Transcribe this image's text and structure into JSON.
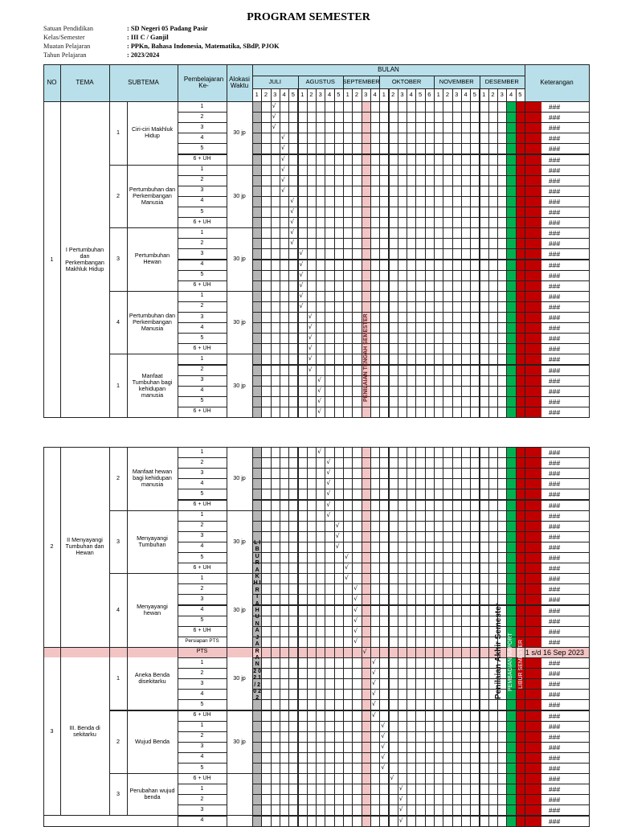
{
  "document": {
    "title": "PROGRAM SEMESTER",
    "meta": [
      {
        "label": "Satuan Pendidikan",
        "value": ": SD Negeri 05 Padang Pasir"
      },
      {
        "label": "Kelas/Semester",
        "value": ": III C / Ganjil"
      },
      {
        "label": "Muatan Pelajaran",
        "value": ": PPKn, Bahasa Indonesia, Matematika, SBdP, PJOK"
      },
      {
        "label": "Tahun Pelajaran",
        "value": ": 2023/2024"
      }
    ]
  },
  "header": {
    "no": "NO",
    "tema": "TEMA",
    "subtema": "SUBTEMA",
    "pembelajaran": "Pembelajaran Ke-",
    "alokasi": "Alokasi Waktu",
    "bulan": "BULAN",
    "keterangan": "Keterangan",
    "months": [
      {
        "name": "JULI",
        "weeks": [
          "1",
          "2",
          "3",
          "4",
          "5"
        ]
      },
      {
        "name": "AGUSTUS",
        "weeks": [
          "1",
          "2",
          "3",
          "4",
          "5"
        ]
      },
      {
        "name": "SEPTEMBER",
        "weeks": [
          "1",
          "2",
          "3",
          "4"
        ]
      },
      {
        "name": "OKTOBER",
        "weeks": [
          "1",
          "2",
          "3",
          "4",
          "5",
          "6"
        ]
      },
      {
        "name": "NOVEMBER",
        "weeks": [
          "1",
          "2",
          "3",
          "4",
          "5"
        ]
      },
      {
        "name": "DESEMBER",
        "weeks": [
          "1",
          "2",
          "3",
          "4",
          "5"
        ]
      }
    ]
  },
  "colors": {
    "header_bg": "#b9e0ea",
    "gray_column": "#b5b5b5",
    "pink_column": "#f2c4c4",
    "green_column": "#00b050",
    "red_column": "#c00000",
    "pts_row": "#f2c4c4"
  },
  "vertical_labels": {
    "pts_column": "PENILAIAN TENGAH SEMESTER",
    "pas": "Penilaian Akhir Semester",
    "raport": "PEMBAGIAN RAPORT",
    "libur": "LIBUR SEMESTER",
    "libur_akhir_tahun": "L I B U R   A K H I R   T A H U N   A J A R A N   2 0 2 1 / 2 0 2 2"
  },
  "check_mark": "√",
  "keterangan_value": "###",
  "pts_keterangan": "1 s/d 16 Sep 2023",
  "tables": [
    {
      "temas": [
        {
          "no": "1",
          "name": "I Pertumbuhan dan Perkembangan Makhluk Hidup",
          "rows": 30
        }
      ],
      "subtemas": [
        {
          "no": "1",
          "name": "Ciri-ciri Makhluk Hidup",
          "alokasi": "30 jp",
          "rows": 6
        },
        {
          "no": "2",
          "name": "Pertumbuhan dan Perkembangan Manusia",
          "alokasi": "30 jp",
          "rows": 6
        },
        {
          "no": "3",
          "name": "Pertumbuhan Hewan",
          "alokasi": "30 jp",
          "rows": 6
        },
        {
          "no": "4",
          "name": "Pertumbuhan dan Perkembangan Manusia",
          "alokasi": "30 jp",
          "rows": 6
        },
        {
          "no": "1",
          "name": "Manfaat Tumbuhan bagi kehidupan manusia",
          "alokasi": "30 jp",
          "rows": 6
        }
      ],
      "rows": [
        {
          "pb": "1",
          "week": 2
        },
        {
          "pb": "2",
          "week": 2
        },
        {
          "pb": "3",
          "week": 2
        },
        {
          "pb": "4",
          "week": 3
        },
        {
          "pb": "5",
          "week": 3
        },
        {
          "pb": "6 + UH",
          "week": 3
        },
        {
          "pb": "1",
          "week": 3
        },
        {
          "pb": "2",
          "week": 3
        },
        {
          "pb": "3",
          "week": 3
        },
        {
          "pb": "4",
          "week": 4
        },
        {
          "pb": "5",
          "week": 4
        },
        {
          "pb": "6 + UH",
          "week": 4
        },
        {
          "pb": "1",
          "week": 4
        },
        {
          "pb": "2",
          "week": 4
        },
        {
          "pb": "3",
          "week": 5
        },
        {
          "pb": "4",
          "week": 5
        },
        {
          "pb": "5",
          "week": 5
        },
        {
          "pb": "6 + UH",
          "week": 5
        },
        {
          "pb": "1",
          "week": 5
        },
        {
          "pb": "2",
          "week": 5
        },
        {
          "pb": "3",
          "week": 6
        },
        {
          "pb": "4",
          "week": 6
        },
        {
          "pb": "5",
          "week": 6
        },
        {
          "pb": "6 + UH",
          "week": 6
        },
        {
          "pb": "1",
          "week": 6
        },
        {
          "pb": "2",
          "week": 6
        },
        {
          "pb": "3",
          "week": 7
        },
        {
          "pb": "4",
          "week": 7
        },
        {
          "pb": "5",
          "week": 7
        },
        {
          "pb": "6 + UH",
          "week": 7
        }
      ]
    },
    {
      "temas": [
        {
          "no": "2",
          "name": "II Menyayangi Tumbuhan dan Hewan",
          "rows": 19
        },
        {
          "no": "3",
          "name": "III. Benda di sekitarku",
          "rows": 16
        }
      ],
      "subtemas": [
        {
          "no": "2",
          "name": "Manfaat hewan bagi kehidupan manusia",
          "alokasi": "30 jp",
          "rows": 6
        },
        {
          "no": "3",
          "name": "Menyayangi Tumbuhan",
          "alokasi": "30 jp",
          "rows": 6
        },
        {
          "no": "4",
          "name": "Menyayangi hewan",
          "alokasi": "30 jp",
          "rows": 7
        },
        {
          "no": "1",
          "name": "Aneka Benda disekitarku",
          "alokasi": "30 jp",
          "rows": 6
        },
        {
          "no": "2",
          "name": "Wujud Benda",
          "alokasi": "30 jp",
          "rows": 6
        },
        {
          "no": "3",
          "name": "Perubahan wujud benda",
          "alokasi": "",
          "rows": 4
        }
      ],
      "rows": [
        {
          "pb": "1",
          "week": 7
        },
        {
          "pb": "2",
          "week": 8
        },
        {
          "pb": "3",
          "week": 8
        },
        {
          "pb": "4",
          "week": 8
        },
        {
          "pb": "5",
          "week": 8
        },
        {
          "pb": "6 + UH",
          "week": 8
        },
        {
          "pb": "1",
          "week": 8
        },
        {
          "pb": "2",
          "week": 9
        },
        {
          "pb": "3",
          "week": 9
        },
        {
          "pb": "4",
          "week": 9
        },
        {
          "pb": "5",
          "week": 10
        },
        {
          "pb": "6 + UH",
          "week": 10
        },
        {
          "pb": "1",
          "week": 10
        },
        {
          "pb": "2",
          "week": 11
        },
        {
          "pb": "3",
          "week": 11
        },
        {
          "pb": "4",
          "week": 11
        },
        {
          "pb": "5",
          "week": 11
        },
        {
          "pb": "6 + UH",
          "week": 11
        },
        {
          "pb": "Persiapan PTS",
          "week": 11
        },
        {
          "pb": "PTS",
          "week": 12,
          "pts": true
        },
        {
          "pb": "1",
          "week": 13
        },
        {
          "pb": "2",
          "week": 13
        },
        {
          "pb": "3",
          "week": 13
        },
        {
          "pb": "4",
          "week": 13
        },
        {
          "pb": "5",
          "week": 13
        },
        {
          "pb": "6 + UH",
          "week": 13
        },
        {
          "pb": "1",
          "week": 14
        },
        {
          "pb": "2",
          "week": 14
        },
        {
          "pb": "3",
          "week": 14
        },
        {
          "pb": "4",
          "week": 14
        },
        {
          "pb": "5",
          "week": 14
        },
        {
          "pb": "6 + UH",
          "week": 15
        },
        {
          "pb": "1",
          "week": 16
        },
        {
          "pb": "2",
          "week": 16
        },
        {
          "pb": "3",
          "week": 16
        },
        {
          "pb": "4",
          "week": 16
        }
      ]
    }
  ]
}
